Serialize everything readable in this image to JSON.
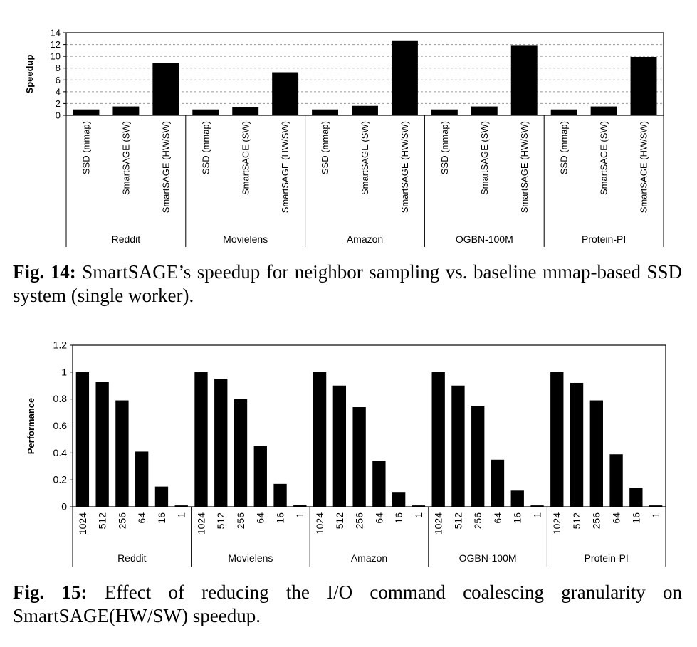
{
  "chart_data": [
    {
      "type": "bar",
      "title": "",
      "ylabel": "Speedup",
      "xlabel": "",
      "ylim": [
        0,
        14
      ],
      "yticks": [
        0,
        2,
        4,
        6,
        8,
        10,
        12,
        14
      ],
      "grid": true,
      "groups": [
        {
          "name": "Reddit",
          "bars": [
            {
              "label": "SSD (mmap)",
              "value": 1.0
            },
            {
              "label": "SmartSAGE (SW)",
              "value": 1.5
            },
            {
              "label": "SmartSAGE (HW/SW)",
              "value": 8.9
            }
          ]
        },
        {
          "name": "Movielens",
          "bars": [
            {
              "label": "SSD (mmap)",
              "value": 1.0
            },
            {
              "label": "SmartSAGE (SW)",
              "value": 1.4
            },
            {
              "label": "SmartSAGE (HW/SW)",
              "value": 7.3
            }
          ]
        },
        {
          "name": "Amazon",
          "bars": [
            {
              "label": "SSD (mmap)",
              "value": 1.0
            },
            {
              "label": "SmartSAGE (SW)",
              "value": 1.6
            },
            {
              "label": "SmartSAGE (HW/SW)",
              "value": 12.7
            }
          ]
        },
        {
          "name": "OGBN-100M",
          "bars": [
            {
              "label": "SSD (mmap)",
              "value": 1.0
            },
            {
              "label": "SmartSAGE (SW)",
              "value": 1.5
            },
            {
              "label": "SmartSAGE (HW/SW)",
              "value": 11.9
            }
          ]
        },
        {
          "name": "Protein-PI",
          "bars": [
            {
              "label": "SSD (mmap)",
              "value": 1.0
            },
            {
              "label": "SmartSAGE (SW)",
              "value": 1.5
            },
            {
              "label": "SmartSAGE (HW/SW)",
              "value": 9.9
            }
          ]
        }
      ]
    },
    {
      "type": "bar",
      "title": "",
      "ylabel": "Performance",
      "xlabel": "",
      "ylim": [
        0,
        1.2
      ],
      "yticks": [
        "0",
        "0.2",
        "0.4",
        "0.6",
        "0.8",
        "1",
        "1.2"
      ],
      "grid": false,
      "groups": [
        {
          "name": "Reddit",
          "bars": [
            {
              "label": "1024",
              "value": 1.0
            },
            {
              "label": "512",
              "value": 0.93
            },
            {
              "label": "256",
              "value": 0.79
            },
            {
              "label": "64",
              "value": 0.41
            },
            {
              "label": "16",
              "value": 0.15
            },
            {
              "label": "1",
              "value": 0.01
            }
          ]
        },
        {
          "name": "Movielens",
          "bars": [
            {
              "label": "1024",
              "value": 1.0
            },
            {
              "label": "512",
              "value": 0.95
            },
            {
              "label": "256",
              "value": 0.8
            },
            {
              "label": "64",
              "value": 0.45
            },
            {
              "label": "16",
              "value": 0.17
            },
            {
              "label": "1",
              "value": 0.015
            }
          ]
        },
        {
          "name": "Amazon",
          "bars": [
            {
              "label": "1024",
              "value": 1.0
            },
            {
              "label": "512",
              "value": 0.9
            },
            {
              "label": "256",
              "value": 0.74
            },
            {
              "label": "64",
              "value": 0.34
            },
            {
              "label": "16",
              "value": 0.11
            },
            {
              "label": "1",
              "value": 0.01
            }
          ]
        },
        {
          "name": "OGBN-100M",
          "bars": [
            {
              "label": "1024",
              "value": 1.0
            },
            {
              "label": "512",
              "value": 0.9
            },
            {
              "label": "256",
              "value": 0.75
            },
            {
              "label": "64",
              "value": 0.35
            },
            {
              "label": "16",
              "value": 0.12
            },
            {
              "label": "1",
              "value": 0.01
            }
          ]
        },
        {
          "name": "Protein-PI",
          "bars": [
            {
              "label": "1024",
              "value": 1.0
            },
            {
              "label": "512",
              "value": 0.92
            },
            {
              "label": "256",
              "value": 0.79
            },
            {
              "label": "64",
              "value": 0.39
            },
            {
              "label": "16",
              "value": 0.14
            },
            {
              "label": "1",
              "value": 0.01
            }
          ]
        }
      ]
    }
  ],
  "captions": {
    "fig14_label": "Fig. 14:",
    "fig14_text": "SmartSAGE’s speedup for neighbor sampling vs. baseline mmap-based SSD system (single worker).",
    "fig15_label": "Fig. 15:",
    "fig15_text": "Effect of reducing the I/O command coalescing granularity on SmartSAGE(HW/SW) speedup."
  }
}
